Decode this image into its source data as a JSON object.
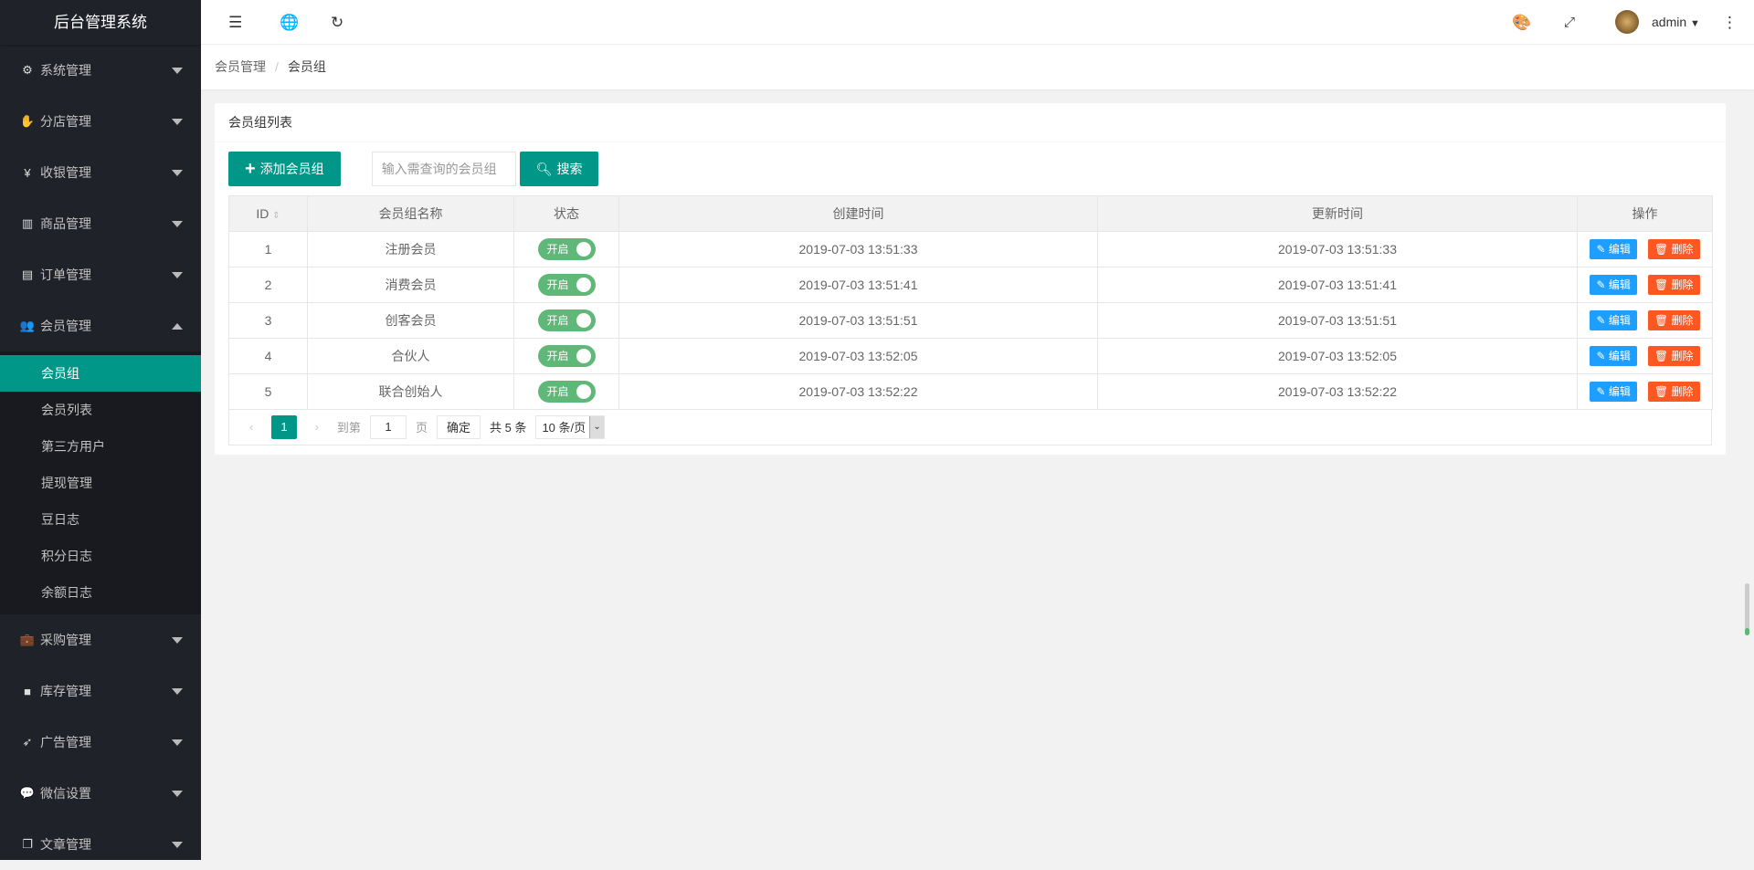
{
  "app": {
    "title": "后台管理系统"
  },
  "sidebar": {
    "items": [
      {
        "label": "系统管理",
        "icon": "gear-icon",
        "glyph": "⚙"
      },
      {
        "label": "分店管理",
        "icon": "hand-icon",
        "glyph": "✋"
      },
      {
        "label": "收银管理",
        "icon": "yen-icon",
        "glyph": "¥"
      },
      {
        "label": "商品管理",
        "icon": "bar-chart-icon",
        "glyph": "▥"
      },
      {
        "label": "订单管理",
        "icon": "calendar-icon",
        "glyph": "▤"
      },
      {
        "label": "会员管理",
        "icon": "users-icon",
        "glyph": "👥",
        "expanded": true
      }
    ],
    "sub_items": [
      "会员组",
      "会员列表",
      "第三方用户",
      "提现管理",
      "豆日志",
      "积分日志",
      "余额日志"
    ],
    "active_sub": "会员组",
    "items_after": [
      {
        "label": "采购管理",
        "icon": "briefcase-icon",
        "glyph": "💼"
      },
      {
        "label": "库存管理",
        "icon": "folder-icon",
        "glyph": "■"
      },
      {
        "label": "广告管理",
        "icon": "rocket-icon",
        "glyph": "➶"
      },
      {
        "label": "微信设置",
        "icon": "wechat-icon",
        "glyph": "💬"
      },
      {
        "label": "文章管理",
        "icon": "copy-icon",
        "glyph": "❐"
      }
    ]
  },
  "header": {
    "user": "admin"
  },
  "breadcrumb": [
    "会员管理",
    "会员组"
  ],
  "card": {
    "title": "会员组列表",
    "add_label": "添加会员组",
    "search_placeholder": "输入需查询的会员组",
    "search_label": "搜索"
  },
  "table": {
    "columns": [
      "ID",
      "会员组名称",
      "状态",
      "创建时间",
      "更新时间",
      "操作"
    ],
    "rows": [
      {
        "id": "1",
        "name": "注册会员",
        "status": "开启",
        "created": "2019-07-03 13:51:33",
        "updated": "2019-07-03 13:51:33"
      },
      {
        "id": "2",
        "name": "消费会员",
        "status": "开启",
        "created": "2019-07-03 13:51:41",
        "updated": "2019-07-03 13:51:41"
      },
      {
        "id": "3",
        "name": "创客会员",
        "status": "开启",
        "created": "2019-07-03 13:51:51",
        "updated": "2019-07-03 13:51:51"
      },
      {
        "id": "4",
        "name": "合伙人",
        "status": "开启",
        "created": "2019-07-03 13:52:05",
        "updated": "2019-07-03 13:52:05"
      },
      {
        "id": "5",
        "name": "联合创始人",
        "status": "开启",
        "created": "2019-07-03 13:52:22",
        "updated": "2019-07-03 13:52:22"
      }
    ],
    "edit_label": "编辑",
    "delete_label": "删除"
  },
  "pager": {
    "current": "1",
    "goto_label": "到第",
    "goto_value": "1",
    "page_unit": "页",
    "confirm": "确定",
    "total": "共 5 条",
    "page_size": "10 条/页"
  },
  "colors": {
    "sidebar": "#20222a",
    "accent": "#009688",
    "switch": "#5fb878",
    "edit": "#1e9fff",
    "delete": "#ff5722"
  }
}
